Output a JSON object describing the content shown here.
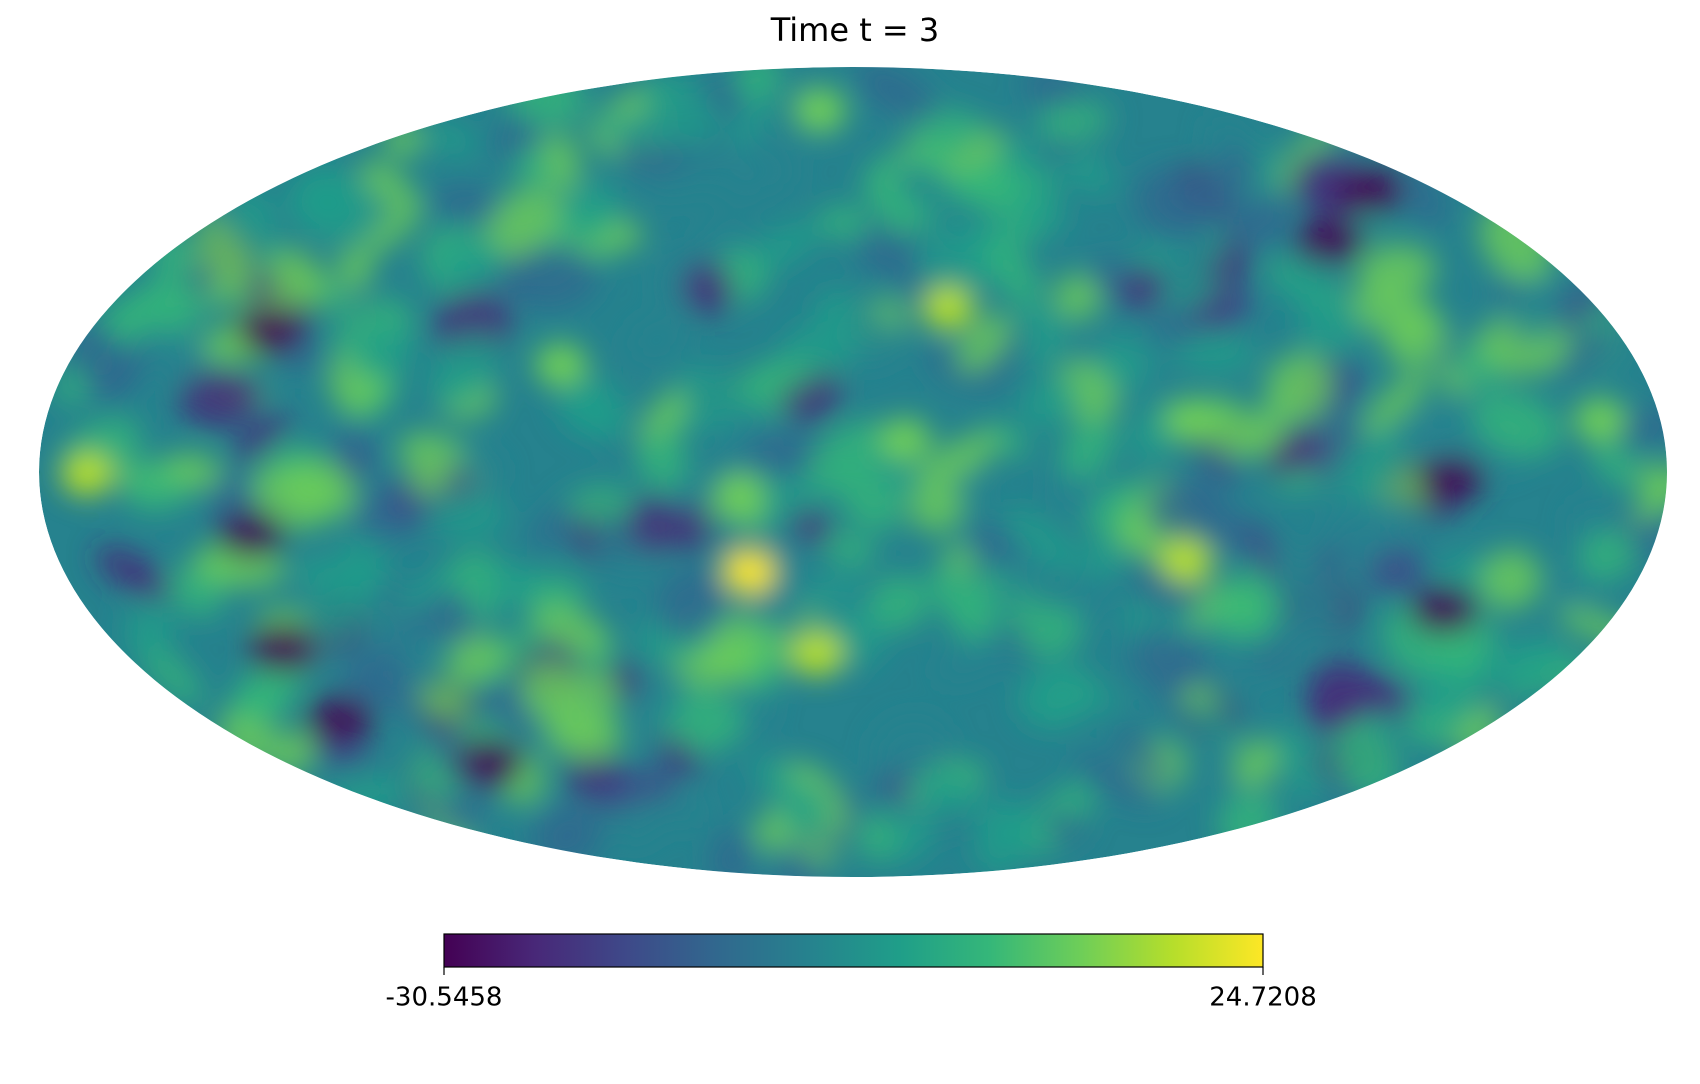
{
  "chart_data": {
    "type": "mollweide",
    "title": "Time t = 3",
    "colormap": "viridis",
    "clim": [
      -30.5458,
      24.7208
    ],
    "cticks": [
      -30.5458,
      24.7208
    ]
  }
}
